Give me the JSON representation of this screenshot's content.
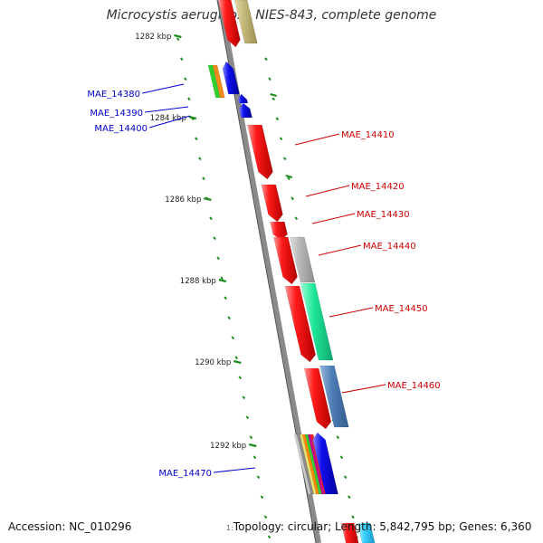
{
  "map": {
    "title": "Microcystis aeruginosa NIES-843, complete genome",
    "accession": "Accession: NC_010296",
    "summary": "Topology: circular; Length: 5,842,795 bp; Genes: 6,360",
    "summary_prefix": "1:"
  },
  "colors": {
    "backbone": "#8a8a8a",
    "tick": "#1c8c1c",
    "plus_label": "#cc0000",
    "minus_label": "#0000cc"
  },
  "ruler": {
    "labels": [
      "1282 kbp",
      "1284 kbp",
      "1286 kbp",
      "1288 kbp",
      "1290 kbp",
      "1292 kbp"
    ]
  },
  "genes": {
    "plus_strand": [
      "MAE_14410",
      "MAE_14420",
      "MAE_14430",
      "MAE_14440",
      "MAE_14450",
      "MAE_14460"
    ],
    "minus_strand": [
      "MAE_14380",
      "MAE_14390",
      "MAE_14400",
      "MAE_14470"
    ]
  }
}
